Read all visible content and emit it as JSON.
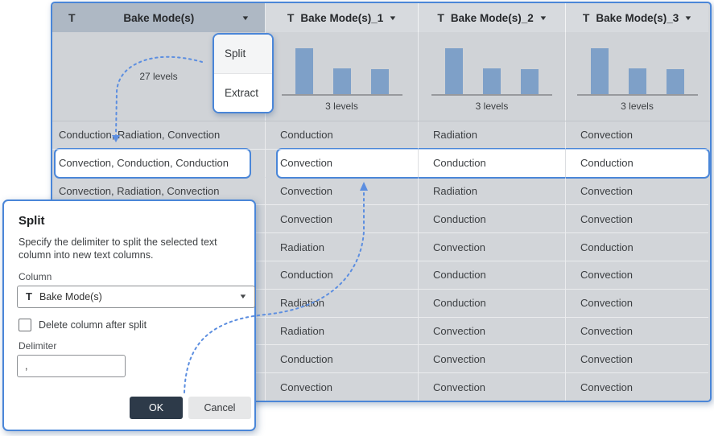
{
  "colors": {
    "accent": "#4a86d8",
    "arrow": "#5c8ee0",
    "bar": "#7ea0c8",
    "headerSelectedBg": "#aeb8c4",
    "headerBg": "#d7dade",
    "summaryBg": "#d0d3d7",
    "rowBg": "#d2d5d9",
    "okButtonBg": "#2d3a49"
  },
  "table": {
    "columns": [
      {
        "label": "Bake Mode(s)",
        "type_icon": "T",
        "caret_icon": "▼",
        "summary": "27 levels",
        "selected_header": true,
        "bars": []
      },
      {
        "label": "Bake Mode(s)_1",
        "type_icon": "T",
        "caret_icon": "▼",
        "summary": "3 levels",
        "selected_header": false,
        "bars": [
          1,
          0.56,
          0.54
        ]
      },
      {
        "label": "Bake Mode(s)_2",
        "type_icon": "T",
        "caret_icon": "▼",
        "summary": "3 levels",
        "selected_header": false,
        "bars": [
          1,
          0.56,
          0.54
        ]
      },
      {
        "label": "Bake Mode(s)_3",
        "type_icon": "T",
        "caret_icon": "▼",
        "summary": "3 levels",
        "selected_header": false,
        "bars": [
          1,
          0.56,
          0.54
        ]
      }
    ],
    "selected_row_index": 1,
    "rows": [
      [
        "Conduction, Radiation, Convection",
        "Conduction",
        "Radiation",
        "Convection"
      ],
      [
        "Convection, Conduction, Conduction",
        "Convection",
        "Conduction",
        "Conduction"
      ],
      [
        "Convection, Radiation, Convection",
        "Convection",
        "Radiation",
        "Convection"
      ],
      [
        "",
        "Convection",
        "Conduction",
        "Convection"
      ],
      [
        "",
        "Radiation",
        "Convection",
        "Conduction"
      ],
      [
        "",
        "Conduction",
        "Conduction",
        "Convection"
      ],
      [
        "",
        "Radiation",
        "Conduction",
        "Convection"
      ],
      [
        "",
        "Radiation",
        "Convection",
        "Convection"
      ],
      [
        "",
        "Conduction",
        "Convection",
        "Convection"
      ],
      [
        "",
        "Convection",
        "Convection",
        "Convection"
      ]
    ]
  },
  "menu": {
    "items": [
      "Split",
      "Extract"
    ],
    "hovered_item": "Split"
  },
  "dialog": {
    "title": "Split",
    "description": "Specify the delimiter to split the selected text column into new text columns.",
    "column_label": "Column",
    "column_type_icon": "T",
    "column_value": "Bake Mode(s)",
    "column_caret_icon": "▼",
    "checkbox_label": "Delete column after split",
    "checkbox_checked": false,
    "delimiter_label": "Delimiter",
    "delimiter_value": ",",
    "ok_label": "OK",
    "cancel_label": "Cancel"
  }
}
